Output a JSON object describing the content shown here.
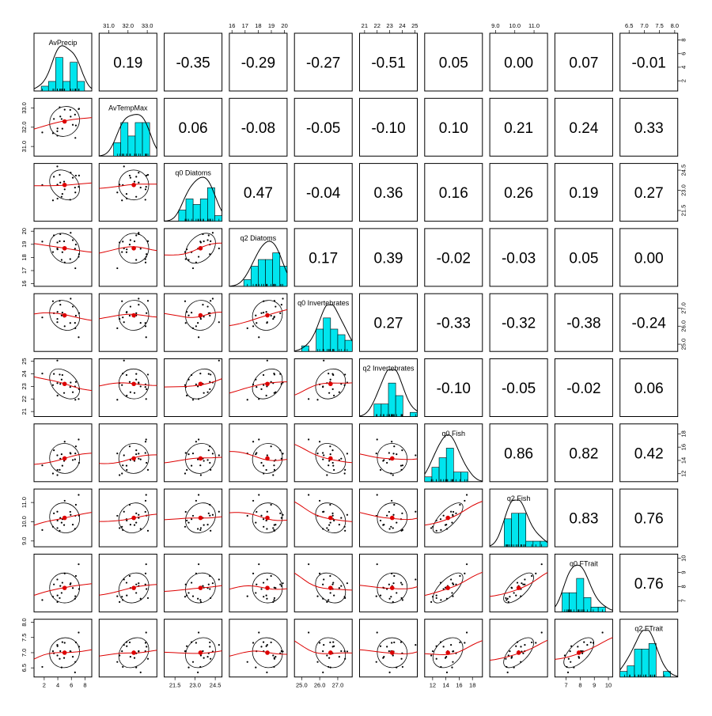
{
  "chart_data": {
    "type": "scatter",
    "subtype": "pairs-panels (scatterplot matrix)",
    "variables": [
      "AvPrecip",
      "AvTempMax",
      "q0 Diatoms",
      "q2 Diatoms",
      "q0 Invertebrates",
      "q2 Invertebrates",
      "q0 Fish",
      "q2 Fish",
      "q0 FTrait",
      "q2 FTrait"
    ],
    "correlations": [
      [
        "",
        "0.19",
        "-0.35",
        "-0.29",
        "-0.27",
        "-0.51",
        "0.05",
        "0.00",
        "0.07",
        "-0.01"
      ],
      [
        "",
        "",
        "0.06",
        "-0.08",
        "-0.05",
        "-0.10",
        "0.10",
        "0.21",
        "0.24",
        "0.33"
      ],
      [
        "",
        "",
        "",
        "0.47",
        "-0.04",
        "0.36",
        "0.16",
        "0.26",
        "0.19",
        "0.27"
      ],
      [
        "",
        "",
        "",
        "",
        "0.17",
        "0.39",
        "-0.02",
        "-0.03",
        "0.05",
        "0.00"
      ],
      [
        "",
        "",
        "",
        "",
        "",
        "0.27",
        "-0.33",
        "-0.32",
        "-0.38",
        "-0.24"
      ],
      [
        "",
        "",
        "",
        "",
        "",
        "",
        "-0.10",
        "-0.05",
        "-0.02",
        "0.06"
      ],
      [
        "",
        "",
        "",
        "",
        "",
        "",
        "",
        "0.86",
        "0.82",
        "0.42"
      ],
      [
        "",
        "",
        "",
        "",
        "",
        "",
        "",
        "",
        "0.83",
        "0.76"
      ],
      [
        "",
        "",
        "",
        "",
        "",
        "",
        "",
        "",
        "",
        "0.76"
      ],
      [
        "",
        "",
        "",
        "",
        "",
        "",
        "",
        "",
        "",
        ""
      ]
    ],
    "ticks": [
      [
        "2",
        "4",
        "6",
        "8"
      ],
      [
        "31.0",
        "32.0",
        "33.0"
      ],
      [
        "21.5",
        "23.0",
        "24.5"
      ],
      [
        "16",
        "17",
        "18",
        "19",
        "20"
      ],
      [
        "25.0",
        "26.0",
        "27.0"
      ],
      [
        "21",
        "22",
        "23",
        "24",
        "25"
      ],
      [
        "12",
        "14",
        "16",
        "18"
      ],
      [
        "9.0",
        "10.0",
        "11.0"
      ],
      [
        "7",
        "8",
        "9",
        "10"
      ],
      [
        "6.5",
        "7.0",
        "7.5",
        "8.0"
      ]
    ],
    "ranges": [
      [
        0.5,
        9
      ],
      [
        30.5,
        33.5
      ],
      [
        20.7,
        25
      ],
      [
        15.8,
        20.2
      ],
      [
        24.6,
        27.8
      ],
      [
        20.6,
        25.2
      ],
      [
        10.8,
        19.5
      ],
      [
        8.7,
        11.7
      ],
      [
        6.2,
        10.3
      ],
      [
        6.2,
        8.1
      ]
    ],
    "means": [
      5,
      32.3,
      23.4,
      18.7,
      26.6,
      23.2,
      14.3,
      10.2,
      7.9,
      7.0
    ],
    "hist_colors": {
      "bar": "#00e5ee",
      "density": "#000000"
    },
    "fit_color": "#dd0000",
    "point_color": "#000000",
    "n_points": 20
  }
}
